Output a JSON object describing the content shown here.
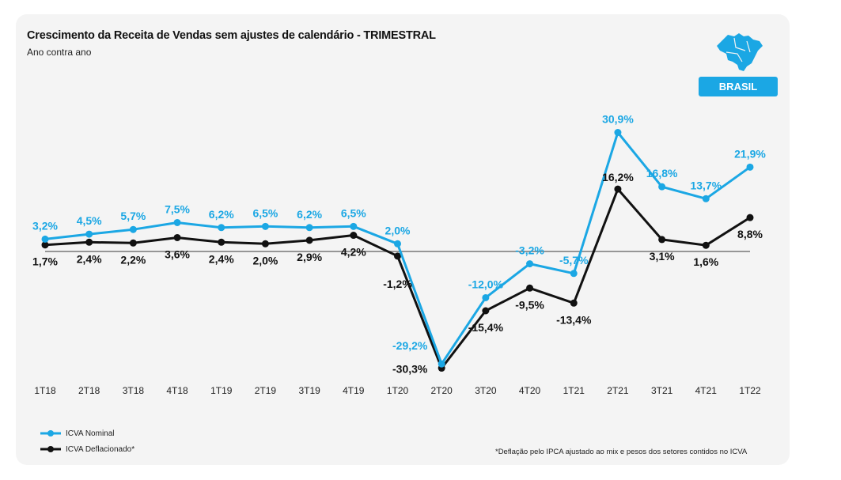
{
  "title": "Crescimento da Receita de Vendas sem ajustes de calendário - TRIMESTRAL",
  "subtitle": "Ano contra ano",
  "badge": "BRASIL",
  "map_icon": "brazil-map-icon",
  "footnote": "*Deflação pelo IPCA ajustado ao mix e pesos dos setores contidos no ICVA",
  "colors": {
    "nominal": "#1ba7e4",
    "deflated": "#111111",
    "zero_line": "#777777"
  },
  "chart_data": {
    "type": "line",
    "title": "Crescimento da Receita de Vendas sem ajustes de calendário - TRIMESTRAL",
    "subtitle": "Ano contra ano",
    "categories": [
      "1T18",
      "2T18",
      "3T18",
      "4T18",
      "1T19",
      "2T19",
      "3T19",
      "4T19",
      "1T20",
      "2T20",
      "3T20",
      "4T20",
      "1T21",
      "2T21",
      "3T21",
      "4T21",
      "1T22"
    ],
    "series": [
      {
        "name": "ICVA Nominal",
        "values": [
          3.2,
          4.5,
          5.7,
          7.5,
          6.2,
          6.5,
          6.2,
          6.5,
          2.0,
          -29.2,
          -12.0,
          -3.2,
          -5.7,
          30.9,
          16.8,
          13.7,
          21.9
        ],
        "labels": [
          "3,2%",
          "4,5%",
          "5,7%",
          "7,5%",
          "6,2%",
          "6,5%",
          "6,2%",
          "6,5%",
          "2,0%",
          "-29,2%",
          "-12,0%",
          "-3,2%",
          "-5,7%",
          "30,9%",
          "16,8%",
          "13,7%",
          "21,9%"
        ]
      },
      {
        "name": "ICVA Deflacionado*",
        "values": [
          1.7,
          2.4,
          2.2,
          3.6,
          2.4,
          2.0,
          2.9,
          4.2,
          -1.2,
          -30.3,
          -15.4,
          -9.5,
          -13.4,
          16.2,
          3.1,
          1.6,
          8.8
        ],
        "labels": [
          "1,7%",
          "2,4%",
          "2,2%",
          "3,6%",
          "2,4%",
          "2,0%",
          "2,9%",
          "4,2%",
          "-1,2%",
          "-30,3%",
          "-15,4%",
          "-9,5%",
          "-13,4%",
          "16,2%",
          "3,1%",
          "1,6%",
          "8,8%"
        ]
      }
    ],
    "xlabel": "",
    "ylabel": "",
    "ylim": [
      -31,
      32
    ],
    "grid": false,
    "legend_position": "bottom-left"
  }
}
